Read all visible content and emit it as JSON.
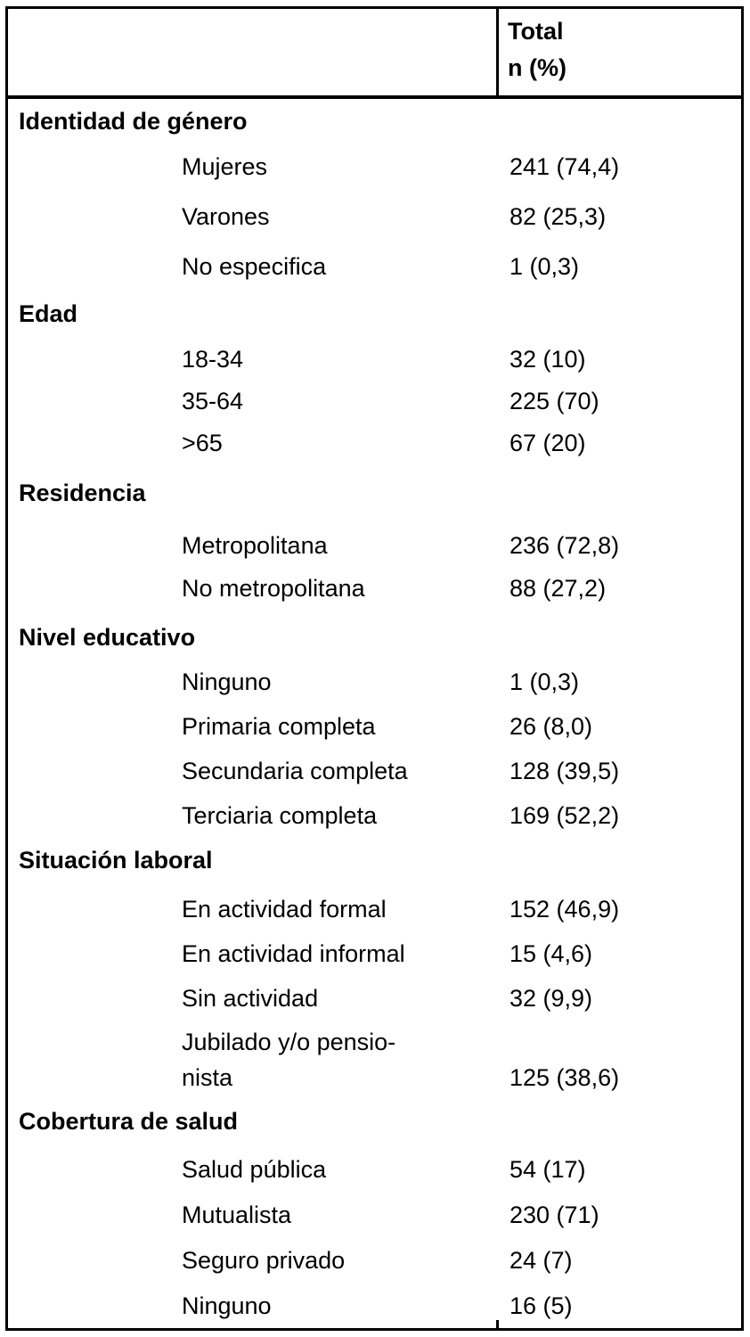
{
  "colors": {
    "border": "#000000",
    "text": "#000000",
    "background": "#ffffff"
  },
  "header": {
    "total_line1": "Total",
    "total_line2": "n (%)"
  },
  "table": {
    "sections": [
      {
        "title": "Identidad de género",
        "rows": [
          {
            "label": "Mujeres",
            "value": "241 (74,4)"
          },
          {
            "label": "Varones",
            "value": "82 (25,3)"
          },
          {
            "label": "No especifica",
            "value": "1 (0,3)"
          }
        ]
      },
      {
        "title": "Edad",
        "rows": [
          {
            "label": "18-34",
            "value": "32 (10)"
          },
          {
            "label": "35-64",
            "value": "225 (70)"
          },
          {
            "label": ">65",
            "value": "67 (20)"
          }
        ]
      },
      {
        "title": "Residencia",
        "rows": [
          {
            "label": "Metropolitana",
            "value": "236 (72,8)"
          },
          {
            "label": "No metropolitana",
            "value": "88 (27,2)"
          }
        ]
      },
      {
        "title": "Nivel educativo",
        "rows": [
          {
            "label": "Ninguno",
            "value": "1 (0,3)"
          },
          {
            "label": "Primaria completa",
            "value": "26 (8,0)"
          },
          {
            "label": "Secundaria completa",
            "value": "128 (39,5)"
          },
          {
            "label": "Terciaria completa",
            "value": "169 (52,2)"
          }
        ]
      },
      {
        "title": "Situación laboral",
        "rows": [
          {
            "label": "En actividad formal",
            "value": "152 (46,9)"
          },
          {
            "label": "En actividad informal",
            "value": "15 (4,6)"
          },
          {
            "label": "Sin actividad",
            "value": "32 (9,9)"
          },
          {
            "label_line1": "Jubilado y/o pensio-",
            "label_line2": "nista",
            "value": "125 (38,6)"
          }
        ]
      },
      {
        "title": "Cobertura de salud",
        "rows": [
          {
            "label": "Salud pública",
            "value": "54 (17)"
          },
          {
            "label": "Mutualista",
            "value": "230 (71)"
          },
          {
            "label": "Seguro privado",
            "value": "24 (7)"
          },
          {
            "label": "Ninguno",
            "value": "16 (5)"
          }
        ]
      }
    ]
  }
}
